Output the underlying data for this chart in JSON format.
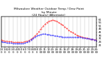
{
  "title": "Milwaukee Weather Outdoor Temp / Dew Point\nby Minute\n(24 Hours) (Alternate)",
  "title_fontsize": 3.2,
  "background_color": "#ffffff",
  "grid_color": "#bbbbbb",
  "ylim": [
    18,
    65
  ],
  "xlim": [
    0,
    1440
  ],
  "temp_color": "#ff2222",
  "dew_color": "#2222ff",
  "temp_x": [
    0,
    30,
    60,
    90,
    120,
    150,
    180,
    210,
    240,
    270,
    300,
    330,
    360,
    390,
    420,
    450,
    480,
    510,
    540,
    570,
    600,
    630,
    660,
    690,
    720,
    750,
    780,
    810,
    840,
    870,
    900,
    930,
    960,
    990,
    1020,
    1050,
    1080,
    1110,
    1140,
    1170,
    1200,
    1230,
    1260,
    1290,
    1320,
    1350,
    1380,
    1410,
    1440
  ],
  "temp_y": [
    29,
    28,
    27,
    27,
    26,
    26,
    25,
    25,
    25,
    25,
    25,
    25,
    26,
    27,
    28,
    30,
    32,
    35,
    38,
    42,
    46,
    50,
    53,
    56,
    58,
    59,
    60,
    59,
    58,
    56,
    54,
    52,
    49,
    47,
    44,
    42,
    40,
    38,
    36,
    35,
    34,
    33,
    32,
    32,
    31,
    30,
    30,
    29,
    29
  ],
  "dew_x": [
    0,
    30,
    60,
    90,
    120,
    150,
    180,
    210,
    240,
    270,
    300,
    330,
    360,
    390,
    420,
    450,
    480,
    510,
    540,
    570,
    600,
    630,
    660,
    690,
    720,
    750,
    780,
    810,
    840,
    870,
    900,
    930,
    960,
    990,
    1020,
    1050,
    1080,
    1110,
    1140,
    1170,
    1200,
    1230,
    1260,
    1290,
    1320,
    1350,
    1380,
    1410,
    1440
  ],
  "dew_y": [
    26,
    25,
    25,
    24,
    24,
    24,
    23,
    23,
    23,
    23,
    23,
    23,
    24,
    25,
    27,
    29,
    31,
    33,
    35,
    36,
    37,
    38,
    38,
    37,
    37,
    36,
    36,
    35,
    35,
    34,
    34,
    33,
    33,
    33,
    33,
    33,
    33,
    33,
    33,
    33,
    33,
    32,
    32,
    31,
    31,
    30,
    30,
    29,
    28
  ],
  "xtick_positions": [
    0,
    60,
    120,
    180,
    240,
    300,
    360,
    420,
    480,
    540,
    600,
    660,
    720,
    780,
    840,
    900,
    960,
    1020,
    1080,
    1140,
    1200,
    1260,
    1320,
    1380,
    1440
  ],
  "xtick_labels": [
    "0:0\n0",
    "1:0\n0",
    "2:0\n0",
    "3:0\n0",
    "4:0\n0",
    "5:0\n0",
    "6:0\n0",
    "7:0\n0",
    "8:0\n0",
    "9:0\n0",
    "10:\n00",
    "11:\n00",
    "12:\n00",
    "13:\n00",
    "14:\n00",
    "15:\n00",
    "16:\n00",
    "17:\n00",
    "18:\n00",
    "19:\n00",
    "20:\n00",
    "21:\n00",
    "22:\n00",
    "23:\n00",
    "24:\n00"
  ],
  "ytick_vals": [
    21,
    26,
    31,
    36,
    41,
    46,
    51,
    56,
    61
  ],
  "tick_fontsize": 2.8,
  "linewidth": 0.5,
  "markersize": 0.7
}
